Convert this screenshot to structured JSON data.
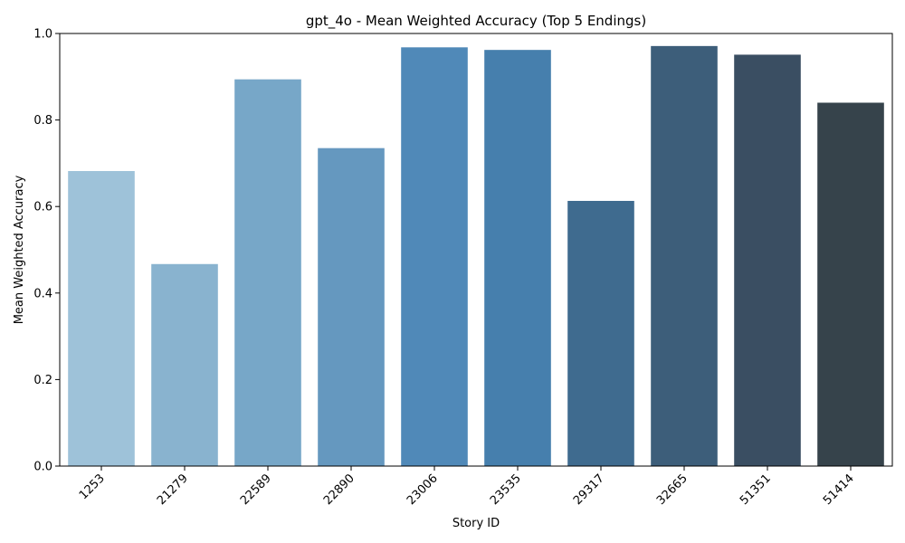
{
  "chart_data": {
    "type": "bar",
    "title": "gpt_4o - Mean Weighted Accuracy (Top 5 Endings)",
    "xlabel": "Story ID",
    "ylabel": "Mean Weighted Accuracy",
    "categories": [
      "1253",
      "21279",
      "22589",
      "22890",
      "23006",
      "23535",
      "29317",
      "32665",
      "51351",
      "51414"
    ],
    "values": [
      0.682,
      0.467,
      0.894,
      0.735,
      0.968,
      0.962,
      0.613,
      0.971,
      0.951,
      0.84
    ],
    "ylim": [
      0,
      1.0
    ],
    "yticks": [
      "0.0",
      "0.2",
      "0.4",
      "0.6",
      "0.8",
      "1.0"
    ],
    "bar_colors": [
      "#9ec2d9",
      "#89b3cf",
      "#77a7c8",
      "#6598bf",
      "#5089b8",
      "#467fad",
      "#3f6b8f",
      "#3d5e7a",
      "#3a4e62",
      "#36434b"
    ],
    "grid": false,
    "legend": "none"
  }
}
